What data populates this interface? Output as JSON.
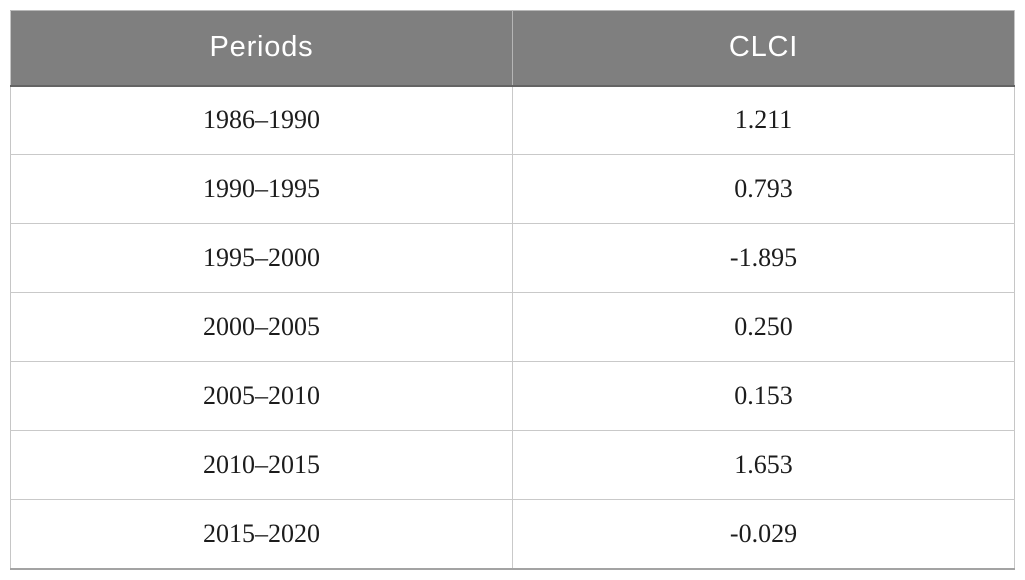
{
  "chart_data": {
    "type": "table",
    "columns": [
      "Periods",
      "CLCI"
    ],
    "categories": [
      "1986–1990",
      "1990–1995",
      "1995–2000",
      "2000–2005",
      "2005–2010",
      "2010–2015",
      "2015–2020"
    ],
    "values": [
      1.211,
      0.793,
      -1.895,
      0.25,
      0.153,
      1.653,
      -0.029
    ],
    "title": ""
  },
  "table": {
    "columns": [
      "Periods",
      "CLCI"
    ],
    "rows": [
      [
        "1986–1990",
        "1.211"
      ],
      [
        "1990–1995",
        "0.793"
      ],
      [
        "1995–2000",
        "-1.895"
      ],
      [
        "2000–2005",
        "0.250"
      ],
      [
        "2005–2010",
        "0.153"
      ],
      [
        "2010–2015",
        "1.653"
      ],
      [
        "2015–2020",
        "-0.029"
      ]
    ]
  },
  "colors": {
    "header_bg": "#7f7f7f",
    "header_text": "#ffffff",
    "body_text": "#1c1c1c",
    "cell_border": "#c9c9c9",
    "outer_bottom_border": "#a3a3a3"
  }
}
